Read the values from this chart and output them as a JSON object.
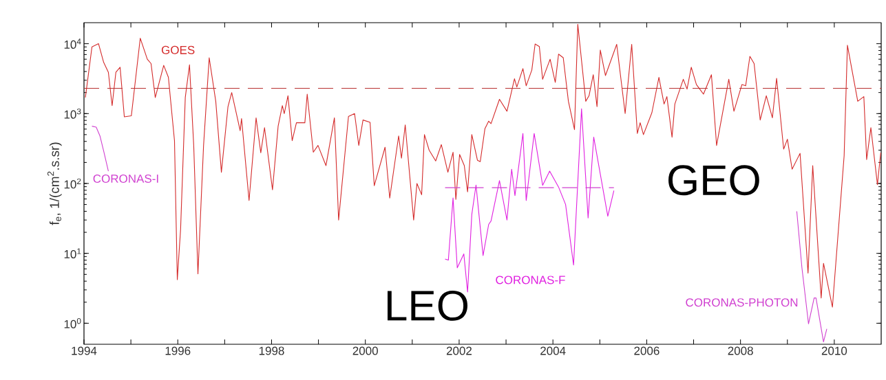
{
  "chart_data": {
    "type": "line",
    "log": "y",
    "marker": "none",
    "ylabel": "f$_{e}$, 1/(cm$^{2}$.s.sr)",
    "xlim": [
      1994,
      2011
    ],
    "ylim": [
      0.5,
      20000
    ],
    "xticks": [
      1994,
      {
        "value": 1995,
        "label": null
      },
      1996,
      {
        "value": 1997,
        "label": null
      },
      1998,
      {
        "value": 1999,
        "label": null
      },
      2000,
      {
        "value": 2001,
        "label": null
      },
      2002,
      {
        "value": 2003,
        "label": null
      },
      2004,
      {
        "value": 2005,
        "label": null
      },
      2006,
      {
        "value": 2007,
        "label": null
      },
      2008,
      {
        "value": 2009,
        "label": null
      },
      2010
    ],
    "yticks": [
      {
        "value": 1,
        "label": "10$^{0}$"
      },
      {
        "value": 10,
        "label": "10$^{1}$"
      },
      {
        "value": 100,
        "label": "10$^{2}$"
      },
      {
        "value": 1000,
        "label": "10$^{3}$"
      },
      {
        "value": 10000,
        "label": "10$^{4}$"
      }
    ],
    "annotations": [
      "LEO",
      "GEO"
    ],
    "series": [
      {
        "name": "GOES",
        "color": "#d42a2a",
        "x": [
          1994.03,
          1994.17,
          1994.31,
          1994.42,
          1994.52,
          1994.6,
          1994.68,
          1994.77,
          1994.86,
          1995.01,
          1995.2,
          1995.35,
          1995.43,
          1995.52,
          1995.7,
          1995.8,
          1995.93,
          1995.99,
          1996.06,
          1996.16,
          1996.25,
          1996.34,
          1996.43,
          1996.55,
          1996.67,
          1996.81,
          1996.93,
          1997.07,
          1997.15,
          1997.25,
          1997.33,
          1997.36,
          1997.52,
          1997.67,
          1997.77,
          1997.85,
          1998.02,
          1998.14,
          1998.23,
          1998.27,
          1998.35,
          1998.44,
          1998.53,
          1998.71,
          1998.76,
          1998.89,
          1998.99,
          1999.16,
          1999.34,
          1999.43,
          1999.64,
          1999.77,
          1999.86,
          1999.95,
          2000.1,
          2000.19,
          2000.42,
          2000.52,
          2000.71,
          2000.77,
          2000.85,
          2001.03,
          2001.1,
          2001.2,
          2001.26,
          2001.36,
          2001.5,
          2001.62,
          2001.76,
          2001.87,
          2001.93,
          2002.01,
          2002.11,
          2002.18,
          2002.27,
          2002.39,
          2002.45,
          2002.55,
          2002.63,
          2002.68,
          2002.86,
          2003.02,
          2003.18,
          2003.23,
          2003.36,
          2003.43,
          2003.55,
          2003.62,
          2003.71,
          2003.78,
          2003.94,
          2004.05,
          2004.12,
          2004.22,
          2004.33,
          2004.46,
          2004.53,
          2004.7,
          2004.77,
          2004.86,
          2004.94,
          2005.01,
          2005.12,
          2005.36,
          2005.54,
          2005.68,
          2005.8,
          2005.86,
          2005.93,
          2006.11,
          2006.26,
          2006.37,
          2006.43,
          2006.54,
          2006.6,
          2006.78,
          2006.86,
          2006.95,
          2007.06,
          2007.21,
          2007.38,
          2007.49,
          2007.75,
          2007.86,
          2008.03,
          2008.11,
          2008.2,
          2008.29,
          2008.42,
          2008.55,
          2008.68,
          2008.77,
          2008.92,
          2009.0,
          2009.1,
          2009.27,
          2009.44,
          2009.54,
          2009.72,
          2009.77,
          2009.96,
          2010.21,
          2010.28,
          2010.5,
          2010.63,
          2010.69,
          2010.78,
          2010.92,
          2010.99
        ],
        "values": [
          1700,
          9000,
          10000,
          5400,
          3900,
          1300,
          3900,
          4600,
          900,
          930,
          12000,
          6000,
          5200,
          1700,
          4900,
          3300,
          410,
          4.2,
          22,
          1700,
          5000,
          350,
          5.1,
          350,
          6300,
          1500,
          145,
          1250,
          2000,
          1000,
          570,
          850,
          57,
          870,
          275,
          630,
          81,
          660,
          1300,
          1000,
          1800,
          410,
          740,
          740,
          1900,
          280,
          350,
          180,
          870,
          30,
          910,
          1000,
          350,
          810,
          750,
          93,
          330,
          62,
          480,
          230,
          690,
          30,
          100,
          69,
          500,
          300,
          210,
          360,
          145,
          280,
          59,
          260,
          180,
          76,
          500,
          215,
          205,
          610,
          780,
          720,
          1600,
          1080,
          3150,
          2400,
          4400,
          2500,
          4200,
          9900,
          9100,
          3100,
          6000,
          2800,
          7100,
          6300,
          1500,
          590,
          19000,
          1500,
          1800,
          3600,
          1260,
          8100,
          3500,
          9800,
          1000,
          9800,
          520,
          740,
          500,
          1030,
          3300,
          1370,
          1750,
          460,
          1370,
          3100,
          2240,
          4600,
          2600,
          1900,
          3600,
          350,
          3100,
          1080,
          2600,
          2500,
          6600,
          5200,
          810,
          1800,
          870,
          3200,
          310,
          430,
          160,
          270,
          5.2,
          180,
          2.3,
          7.2,
          1.7,
          250,
          9500,
          1500,
          1750,
          220,
          630,
          96,
          275
        ]
      },
      {
        "color": "#b83030",
        "line_style": "dashed",
        "x": [
          1994,
          2011
        ],
        "values": [
          2300,
          2300
        ]
      },
      {
        "name": "CORONAS-I",
        "color": "#d040d0",
        "x": [
          1994.17,
          1994.26,
          1994.34,
          1994.42,
          1994.52
        ],
        "values": [
          660,
          640,
          480,
          290,
          150
        ]
      },
      {
        "name": "CORONAS-F",
        "color": "#e020e0",
        "x": [
          2001.7,
          2001.77,
          2001.87,
          2001.96,
          2002.1,
          2002.18,
          2002.27,
          2002.36,
          2002.51,
          2002.63,
          2002.68,
          2002.86,
          2003.02,
          2003.12,
          2003.19,
          2003.36,
          2003.43,
          2003.6,
          2003.78,
          2003.93,
          2004.12,
          2004.27,
          2004.44,
          2004.61,
          2004.75,
          2004.87,
          2005.17,
          2005.3
        ],
        "values": [
          8.3,
          8.0,
          62,
          6.2,
          9.8,
          2.8,
          36,
          95,
          9.3,
          26,
          29,
          110,
          30,
          160,
          67,
          520,
          57,
          520,
          94,
          150,
          89,
          50,
          6.8,
          1170,
          32,
          460,
          34,
          79
        ]
      },
      {
        "color": "#d040d0",
        "line_style": "dashed",
        "x": [
          2001.7,
          2005.3
        ],
        "values": [
          87,
          87
        ]
      },
      {
        "name": "CORONAS-PHOTON",
        "color": "#d040d0",
        "x": [
          2009.2,
          2009.31,
          2009.45,
          2009.57,
          2009.61,
          2009.77,
          2009.84
        ],
        "values": [
          40,
          6.2,
          0.98,
          2.3,
          2.3,
          0.54,
          0.83
        ]
      }
    ]
  }
}
